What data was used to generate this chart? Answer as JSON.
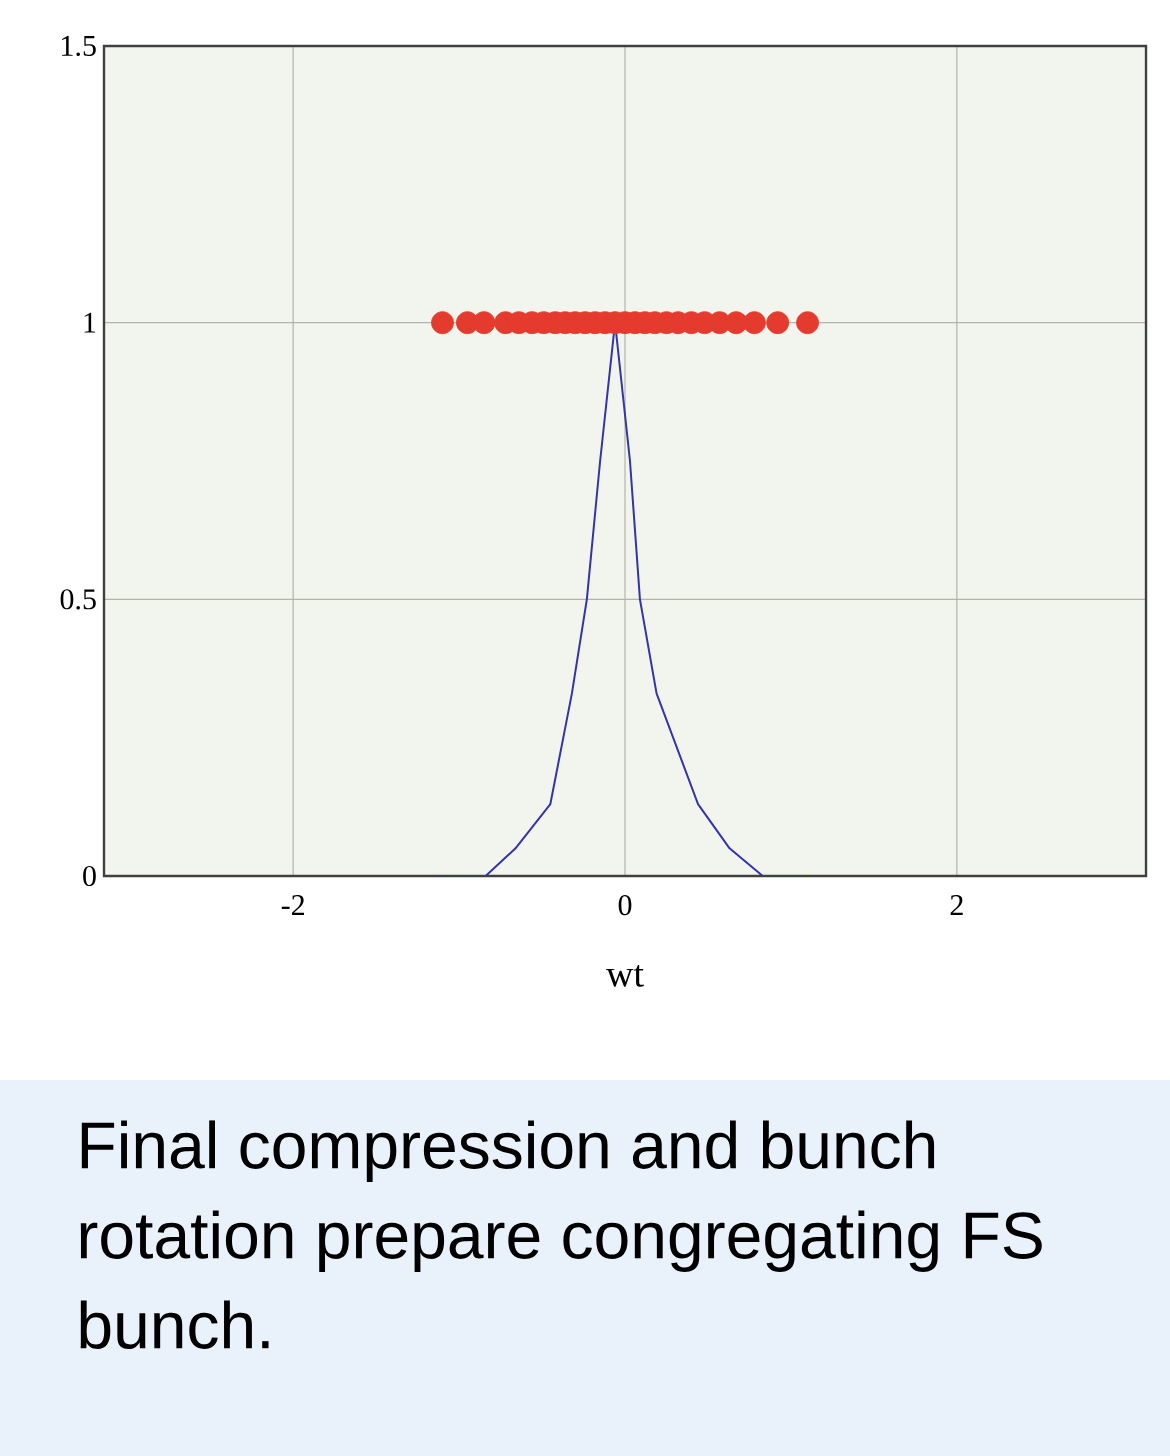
{
  "chart_data": {
    "type": "line",
    "xlabel": "wt",
    "xlim": [
      -3.14,
      3.14
    ],
    "ylim": [
      0,
      1.5
    ],
    "xticks": [
      -2,
      0,
      2
    ],
    "yticks": [
      0,
      0.5,
      1,
      1.5
    ],
    "grid": true,
    "series": [
      {
        "type": "scatter",
        "marker": "circle",
        "color": "#e53a2e",
        "x": [
          -1.1,
          -0.95,
          -0.85,
          -0.72,
          -0.64,
          -0.56,
          -0.49,
          -0.42,
          -0.36,
          -0.3,
          -0.24,
          -0.18,
          -0.12,
          -0.06,
          0,
          0.06,
          0.12,
          0.18,
          0.25,
          0.32,
          0.4,
          0.48,
          0.57,
          0.67,
          0.78,
          0.92,
          1.1
        ],
        "values": [
          1,
          1,
          1,
          1,
          1,
          1,
          1,
          1,
          1,
          1,
          1,
          1,
          1,
          1,
          1,
          1,
          1,
          1,
          1,
          1,
          1,
          1,
          1,
          1,
          1,
          1,
          1
        ]
      },
      {
        "color": "#3333aa",
        "x": [
          -1.13,
          -0.84,
          -0.66,
          -0.45,
          -0.32,
          -0.23,
          -0.15,
          -0.06,
          0.03,
          0.09,
          0.19,
          0.44,
          0.63,
          0.83,
          1.08
        ],
        "values": [
          0,
          0,
          0.05,
          0.13,
          0.33,
          0.5,
          0.75,
          1,
          0.75,
          0.5,
          0.33,
          0.13,
          0.05,
          0,
          0
        ]
      }
    ],
    "annotations": [
      "Final compression and bunch rotation prepare congregating FS bunch."
    ]
  }
}
